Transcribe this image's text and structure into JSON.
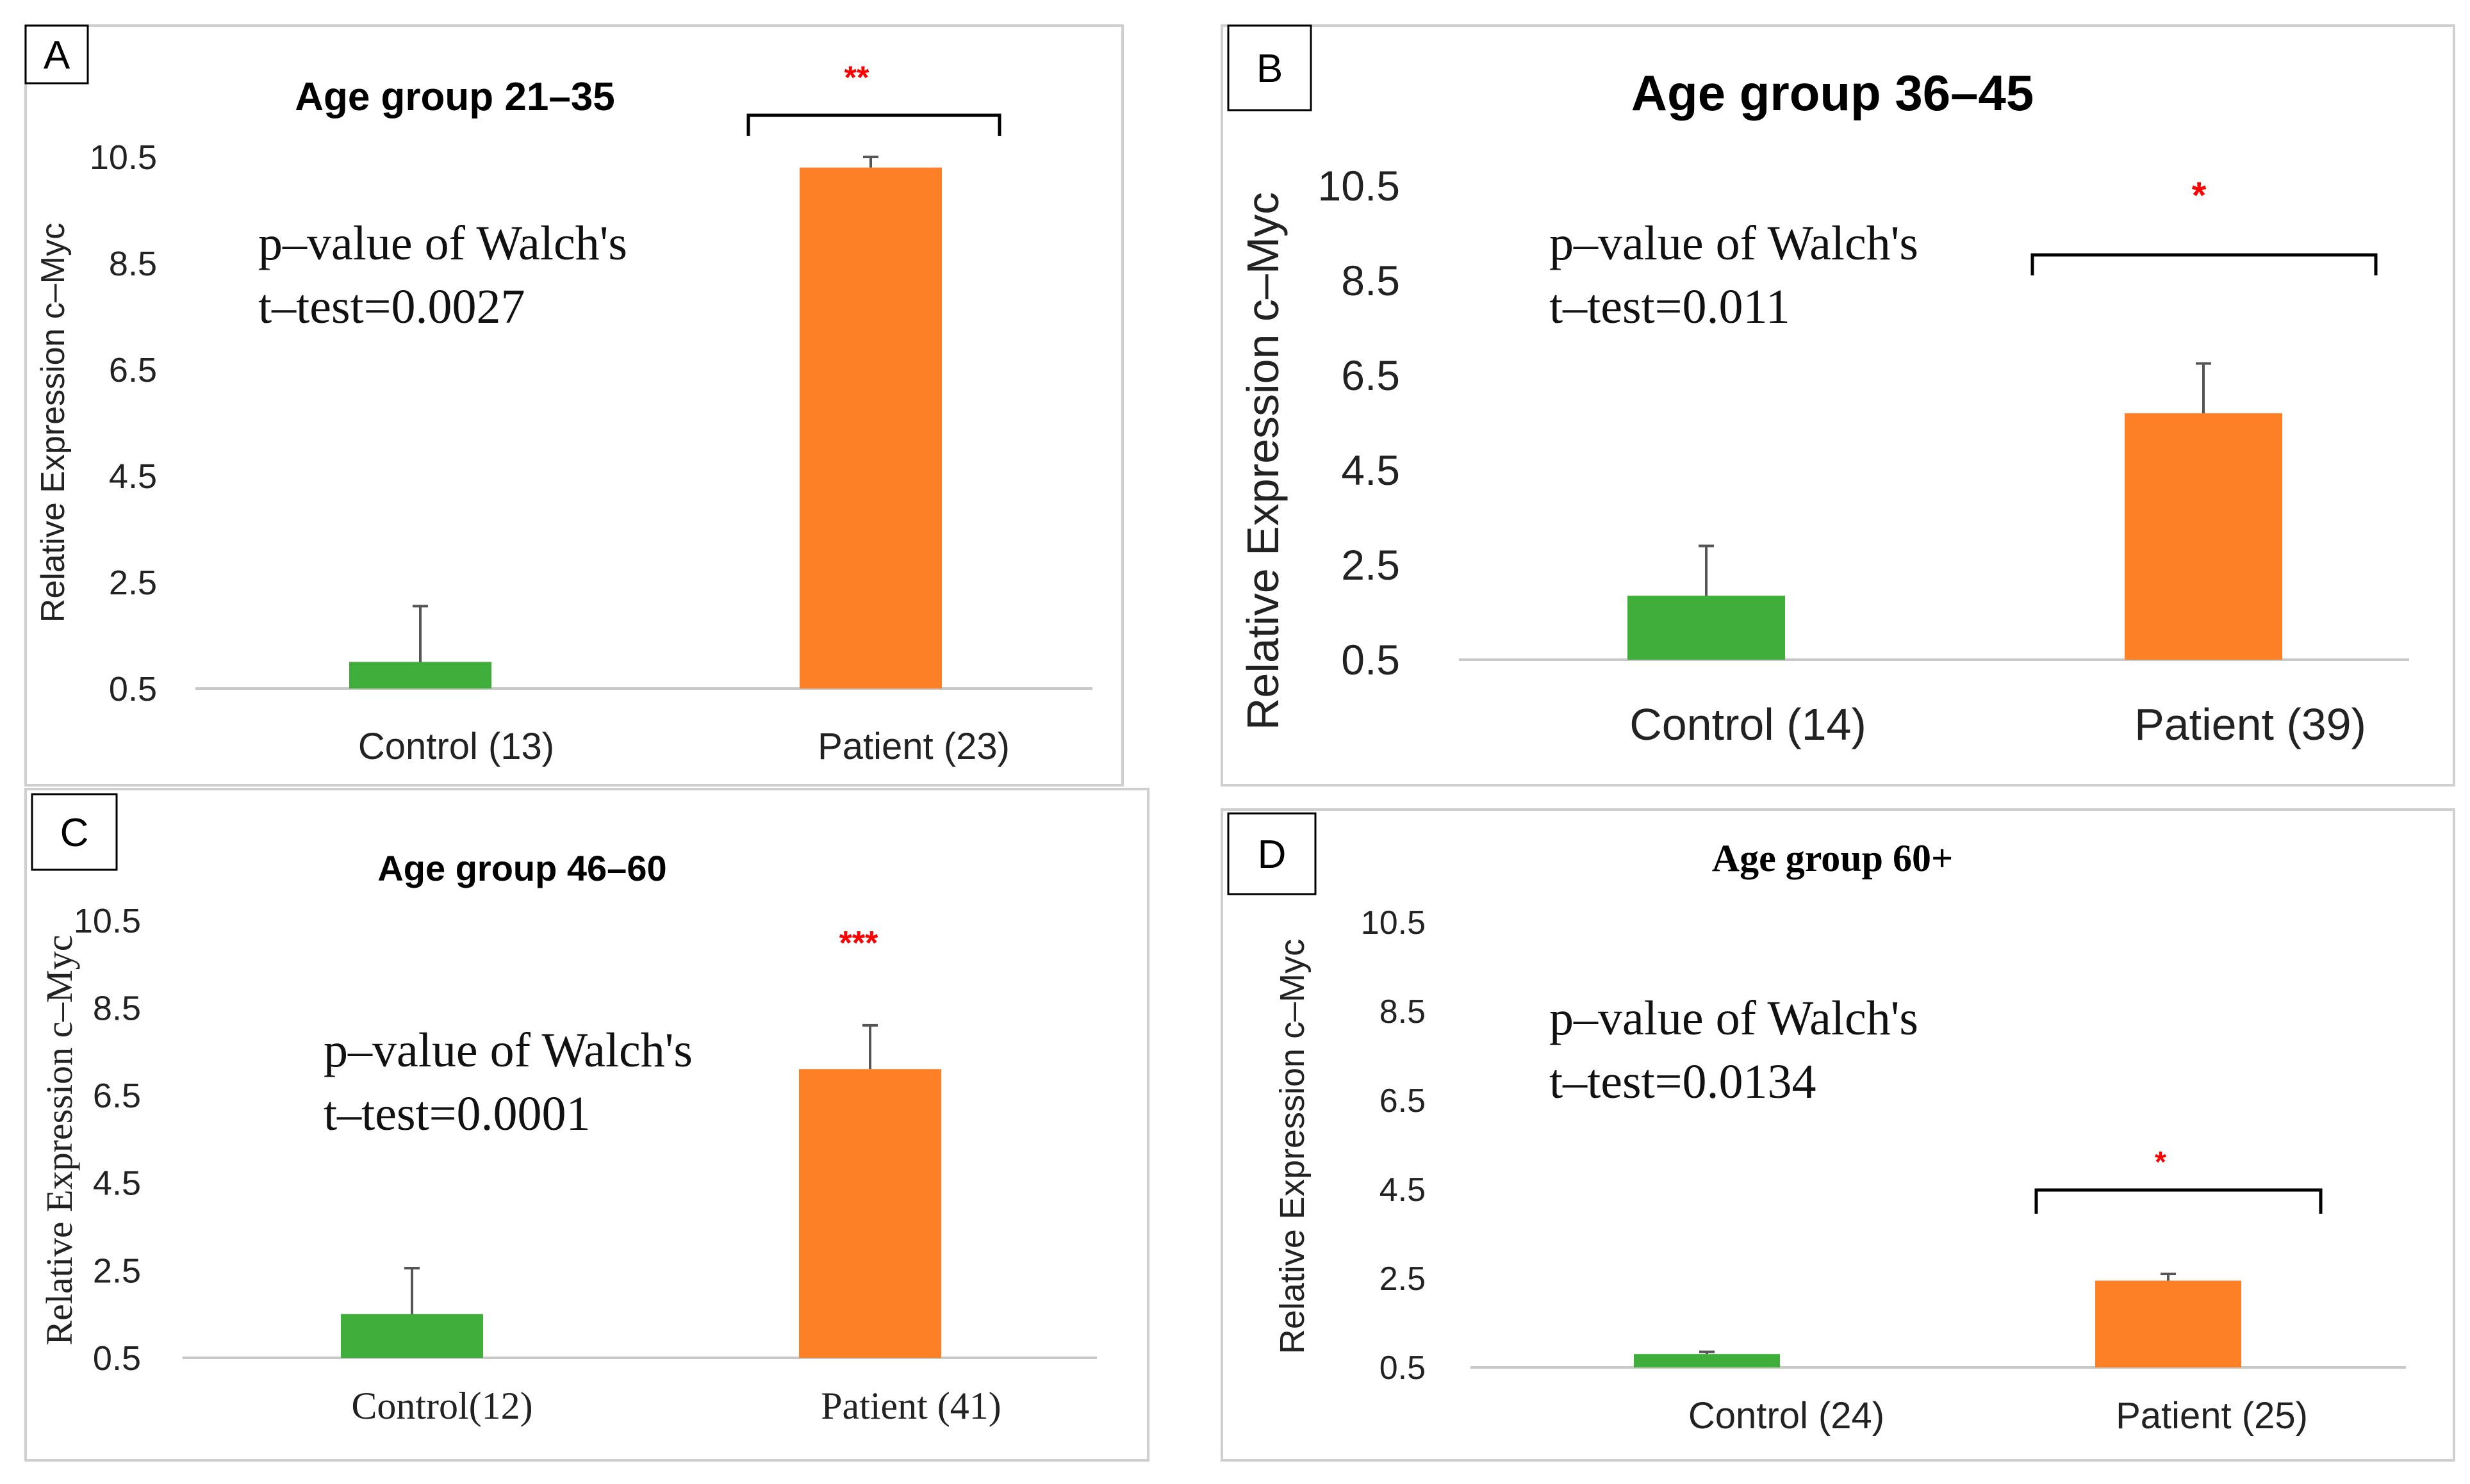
{
  "colors": {
    "control": "#3fae3a",
    "patient": "#fd8026",
    "significance": "#ff0000",
    "axis": "#c8c8c8",
    "text": "#222222",
    "panel_border": "#cfcfcf",
    "error_bar": "#555555"
  },
  "chart_data": [
    {
      "panel": "A",
      "type": "bar",
      "title": "Age group 21–35",
      "ylabel": "Relative Expression c–Myc",
      "yticks": [
        "10.5",
        "8.5",
        "6.5",
        "4.5",
        "2.5",
        "0.5"
      ],
      "ylim": [
        0.5,
        10.5
      ],
      "categories": [
        "Control (13)",
        "Patient (23)"
      ],
      "values": [
        1.0,
        10.3
      ],
      "errors": [
        1.05,
        0.2
      ],
      "annotation_lines": [
        "p–value of Walch's",
        "t–test=0.0027"
      ],
      "significance": "**",
      "bracket": true
    },
    {
      "panel": "B",
      "type": "bar",
      "title": "Age group 36–45",
      "ylabel": "Relative  Expression c–Myc",
      "yticks": [
        "10.5",
        "8.5",
        "6.5",
        "4.5",
        "2.5",
        "0.5"
      ],
      "ylim": [
        0.5,
        10.5
      ],
      "categories": [
        "Control (14)",
        "Patient (39)"
      ],
      "values": [
        1.85,
        5.7
      ],
      "errors": [
        1.05,
        1.05
      ],
      "annotation_lines": [
        "p–value of Walch's",
        "t–test=0.011"
      ],
      "significance": "*",
      "bracket": true
    },
    {
      "panel": "C",
      "type": "bar",
      "title": "Age group 46–60",
      "ylabel": "Relative  Expression c–Myc",
      "yticks": [
        "10.5",
        "8.5",
        "6.5",
        "4.5",
        "2.5",
        "0.5"
      ],
      "ylim": [
        0.5,
        10.5
      ],
      "categories": [
        "Control(12)",
        "Patient (41)"
      ],
      "values": [
        1.5,
        7.1
      ],
      "errors": [
        1.05,
        1.0
      ],
      "annotation_lines": [
        "p–value of Walch's",
        "t–test=0.0001"
      ],
      "significance": "***",
      "bracket": false
    },
    {
      "panel": "D",
      "type": "bar",
      "title": "Age group 60+",
      "ylabel": "Relative  Expression c–Myc",
      "yticks": [
        "10.5",
        "8.5",
        "6.5",
        "4.5",
        "2.5",
        "0.5"
      ],
      "ylim": [
        0.5,
        10.5
      ],
      "categories": [
        "Control (24)",
        "Patient (25)"
      ],
      "values": [
        0.8,
        2.45
      ],
      "errors": [
        0.05,
        0.15
      ],
      "annotation_lines": [
        "p–value of Walch's",
        "t–test=0.0134"
      ],
      "significance": "*",
      "bracket": true
    }
  ]
}
